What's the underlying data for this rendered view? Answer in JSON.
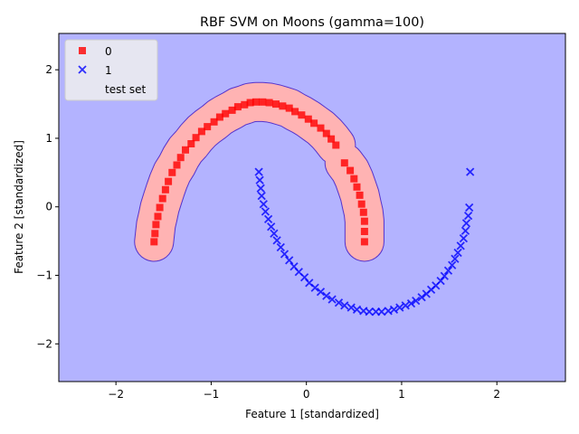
{
  "chart_data": {
    "type": "scatter",
    "title": "RBF SVM on Moons (gamma=100)",
    "xlabel": "Feature 1 [standardized]",
    "ylabel": "Feature 2 [standardized]",
    "xlim": [
      -2.6,
      2.72
    ],
    "ylim": [
      -2.55,
      2.53
    ],
    "xticks": [
      -2,
      -1,
      0,
      1,
      2
    ],
    "yticks": [
      -2,
      -1,
      0,
      1,
      2
    ],
    "xtick_labels": [
      "−2",
      "−1",
      "0",
      "1",
      "2"
    ],
    "ytick_labels": [
      "−2",
      "−1",
      "0",
      "1",
      "2"
    ],
    "grid": false,
    "legend_position": "top-left",
    "colors": {
      "class0_marker": "#ff0000",
      "class1_marker": "#0000ff",
      "class0_region": "#ffb3b3",
      "class1_region": "#b3b3ff",
      "boundary": "#5533cc",
      "legend_bg": "#eeeeee"
    },
    "decision_region_class0_width": 0.2,
    "series": [
      {
        "name": "0",
        "marker": "square",
        "x": [
          -1.6,
          -1.59,
          -1.58,
          -1.56,
          -1.54,
          -1.51,
          -1.48,
          -1.45,
          -1.41,
          -1.36,
          -1.32,
          -1.27,
          -1.21,
          -1.16,
          -1.1,
          -1.04,
          -0.97,
          -0.91,
          -0.85,
          -0.78,
          -0.72,
          -0.65,
          -0.59,
          -0.53,
          -0.46,
          -0.39,
          -0.32,
          -0.25,
          -0.18,
          -0.12,
          -0.05,
          0.02,
          0.08,
          0.15,
          0.21,
          0.26,
          0.31,
          0.4,
          0.46,
          0.5,
          0.53,
          0.56,
          0.58,
          0.6,
          0.61,
          0.61,
          0.61
        ],
        "y": [
          -0.51,
          -0.39,
          -0.26,
          -0.14,
          -0.01,
          0.12,
          0.25,
          0.37,
          0.5,
          0.61,
          0.72,
          0.83,
          0.92,
          1.01,
          1.1,
          1.17,
          1.24,
          1.31,
          1.36,
          1.41,
          1.46,
          1.49,
          1.52,
          1.53,
          1.53,
          1.52,
          1.5,
          1.47,
          1.44,
          1.39,
          1.34,
          1.28,
          1.22,
          1.15,
          1.07,
          0.99,
          0.9,
          0.64,
          0.53,
          0.41,
          0.29,
          0.17,
          0.04,
          -0.08,
          -0.21,
          -0.36,
          -0.51
        ]
      },
      {
        "name": "1",
        "marker": "x",
        "x": [
          -0.5,
          -0.49,
          -0.48,
          -0.47,
          -0.45,
          -0.43,
          -0.4,
          -0.37,
          -0.34,
          -0.31,
          -0.27,
          -0.23,
          -0.18,
          -0.13,
          -0.08,
          -0.02,
          0.03,
          0.09,
          0.15,
          0.21,
          0.27,
          0.34,
          0.4,
          0.47,
          0.53,
          0.6,
          0.66,
          0.73,
          0.79,
          0.86,
          0.92,
          0.98,
          1.04,
          1.1,
          1.15,
          1.21,
          1.26,
          1.31,
          1.36,
          1.41,
          1.45,
          1.49,
          1.53,
          1.56,
          1.59,
          1.62,
          1.65,
          1.67,
          1.68,
          1.7,
          1.71,
          1.72
        ],
        "y": [
          0.51,
          0.39,
          0.27,
          0.16,
          0.04,
          -0.07,
          -0.18,
          -0.29,
          -0.39,
          -0.49,
          -0.59,
          -0.69,
          -0.78,
          -0.87,
          -0.95,
          -1.03,
          -1.11,
          -1.18,
          -1.24,
          -1.3,
          -1.35,
          -1.4,
          -1.44,
          -1.47,
          -1.5,
          -1.52,
          -1.53,
          -1.53,
          -1.53,
          -1.52,
          -1.5,
          -1.47,
          -1.44,
          -1.41,
          -1.37,
          -1.32,
          -1.27,
          -1.21,
          -1.15,
          -1.08,
          -1.01,
          -0.93,
          -0.85,
          -0.76,
          -0.67,
          -0.57,
          -0.46,
          -0.35,
          -0.24,
          -0.13,
          -0.01,
          0.51
        ]
      },
      {
        "name": "test set",
        "marker": "none",
        "x": [],
        "y": []
      }
    ]
  }
}
